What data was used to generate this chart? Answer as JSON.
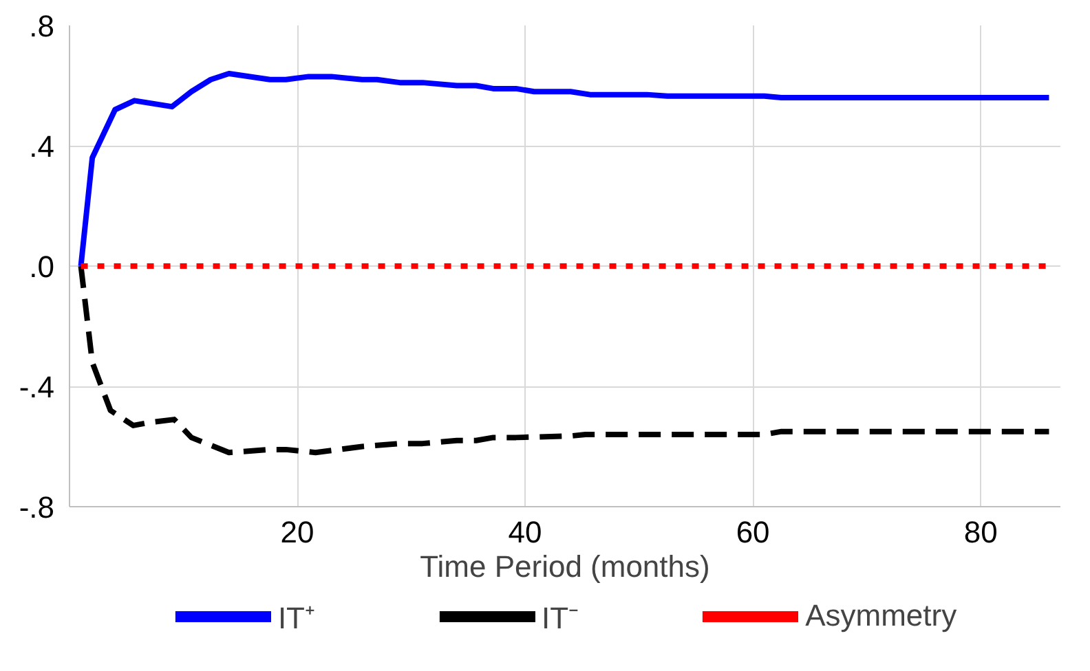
{
  "chart_data": {
    "type": "line",
    "xlabel": "Time Period (months)",
    "xlim": [
      0,
      87
    ],
    "xticks": [
      20,
      40,
      60,
      80
    ],
    "ylim": [
      -0.8,
      0.8
    ],
    "yticks": [
      {
        "value": -0.8,
        "label": "-.8"
      },
      {
        "value": -0.4,
        "label": "-.4"
      },
      {
        "value": 0,
        "label": ".0"
      },
      {
        "value": 0.4,
        "label": ".4"
      },
      {
        "value": 0.8,
        "label": ".8"
      }
    ],
    "grid": true,
    "legend": "bottom",
    "series": [
      {
        "name": "IT⁺",
        "color": "#0000ff",
        "line_style": "solid",
        "x": [
          1,
          2,
          4,
          5.7,
          9,
          10.7,
          12.4,
          14,
          17.6,
          19,
          21,
          23,
          25.7,
          27,
          29,
          31,
          34,
          35.7,
          37.2,
          39.2,
          40.8,
          44,
          45.7,
          50.7,
          52.5,
          61,
          62.5,
          86
        ],
        "values": [
          0,
          0.36,
          0.52,
          0.55,
          0.53,
          0.58,
          0.62,
          0.64,
          0.62,
          0.62,
          0.63,
          0.63,
          0.62,
          0.62,
          0.61,
          0.61,
          0.6,
          0.6,
          0.59,
          0.59,
          0.58,
          0.58,
          0.57,
          0.57,
          0.565,
          0.565,
          0.56,
          0.56
        ]
      },
      {
        "name": "IT⁻",
        "color": "#000000",
        "line_style": "dashed",
        "x": [
          1,
          2,
          3.6,
          5.6,
          7,
          9.2,
          10.7,
          14,
          17.6,
          19,
          21.6,
          25.7,
          29,
          31,
          34,
          35.7,
          37.2,
          39.2,
          44,
          45.3,
          61,
          62.5,
          86
        ],
        "values": [
          0,
          -0.32,
          -0.48,
          -0.53,
          -0.52,
          -0.51,
          -0.57,
          -0.62,
          -0.61,
          -0.61,
          -0.62,
          -0.6,
          -0.59,
          -0.59,
          -0.58,
          -0.58,
          -0.57,
          -0.57,
          -0.565,
          -0.56,
          -0.56,
          -0.55,
          -0.55
        ]
      },
      {
        "name": "Asymmetry",
        "color": "#ff0000",
        "line_style": "dotted",
        "x": [
          1,
          86
        ],
        "values": [
          0,
          0
        ]
      }
    ]
  }
}
